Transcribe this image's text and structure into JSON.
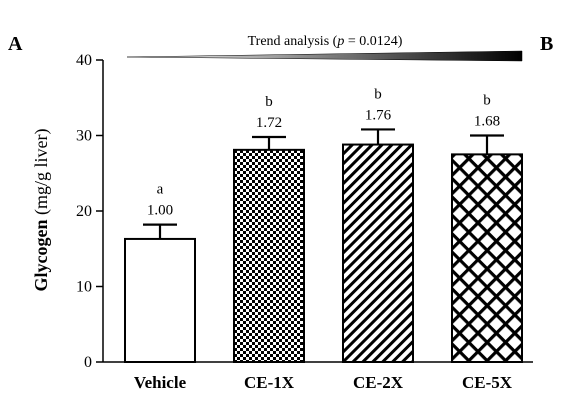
{
  "panel_labels": {
    "left": "A",
    "right": "B"
  },
  "trend": {
    "label": "Trend analysis (p = 0.0124)",
    "prefix": "Trend analysis (",
    "p_symbol": "p",
    "suffix": " = 0.0124)"
  },
  "y_axis_label": {
    "bold": "Glycogen",
    "rest": "(mg/g liver)"
  },
  "chart_data": {
    "type": "bar",
    "categories": [
      "Vehicle",
      "CE-1X",
      "CE-2X",
      "CE-5X"
    ],
    "values": [
      16.3,
      28.1,
      28.8,
      27.5
    ],
    "errors": [
      1.9,
      1.7,
      2.0,
      2.5
    ],
    "letters": [
      "a",
      "b",
      "b",
      "b"
    ],
    "ratios": [
      "1.00",
      "1.72",
      "1.76",
      "1.68"
    ],
    "patterns": [
      "none",
      "checker",
      "diagonal",
      "crosshatch"
    ],
    "ylim": [
      0,
      40
    ],
    "yticks": [
      0,
      10,
      20,
      30,
      40
    ],
    "ylabel": "Glycogen (mg/g liver)",
    "title": "Trend analysis (p = 0.0124)",
    "grid": false
  }
}
